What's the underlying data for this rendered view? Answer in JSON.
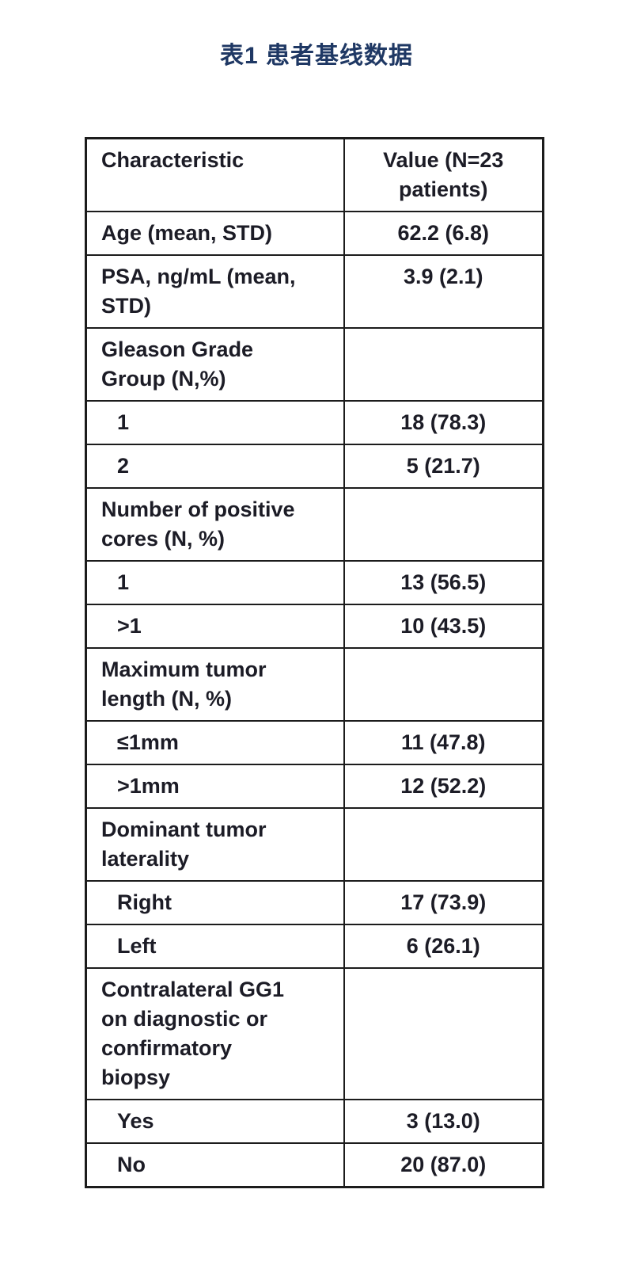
{
  "title": "表1 患者基线数据",
  "colors": {
    "title_accent": "#1f3864",
    "table_text": "#1c1c26",
    "table_border": "#1c1c1c",
    "page_background": "#ffffff"
  },
  "table": {
    "headers": [
      "Characteristic",
      "Value (N=23 patients)"
    ],
    "rows": [
      {
        "label": "Age (mean, STD)",
        "value": "62.2 (6.8)",
        "indent": false
      },
      {
        "label": "PSA, ng/mL (mean,\nSTD)",
        "value": "3.9 (2.1)",
        "indent": false
      },
      {
        "label": "Gleason Grade\nGroup (N,%)",
        "value": "",
        "indent": false
      },
      {
        "label": "1",
        "value": "18 (78.3)",
        "indent": true
      },
      {
        "label": "2",
        "value": "5 (21.7)",
        "indent": true
      },
      {
        "label": "Number of positive\ncores (N, %)",
        "value": "",
        "indent": false
      },
      {
        "label": "1",
        "value": "13 (56.5)",
        "indent": true
      },
      {
        "label": ">1",
        "value": "10 (43.5)",
        "indent": true
      },
      {
        "label": "Maximum tumor\nlength (N, %)",
        "value": "",
        "indent": false
      },
      {
        "label": "≤1mm",
        "value": "11 (47.8)",
        "indent": true
      },
      {
        "label": ">1mm",
        "value": "12 (52.2)",
        "indent": true
      },
      {
        "label": "Dominant tumor\nlaterality",
        "value": "",
        "indent": false
      },
      {
        "label": "Right",
        "value": "17 (73.9)",
        "indent": true
      },
      {
        "label": "Left",
        "value": "6 (26.1)",
        "indent": true
      },
      {
        "label": "Contralateral GG1\non diagnostic or\nconfirmatory\nbiopsy",
        "value": "",
        "indent": false
      },
      {
        "label": "Yes",
        "value": "3 (13.0)",
        "indent": true
      },
      {
        "label": "No",
        "value": "20 (87.0)",
        "indent": true
      }
    ]
  }
}
